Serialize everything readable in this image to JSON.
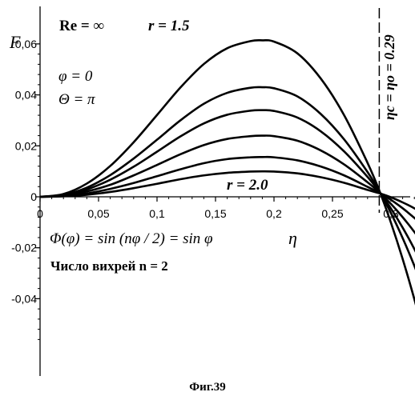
{
  "chart_data": {
    "type": "line",
    "title": "",
    "xlabel": "η",
    "ylabel": "F",
    "xlim": [
      0,
      0.33
    ],
    "ylim": [
      -0.058,
      0.062
    ],
    "grid": false,
    "x_ticks": [
      {
        "value": 0,
        "label": "0"
      },
      {
        "value": 0.05,
        "label": "0,05"
      },
      {
        "value": 0.1,
        "label": "0,1"
      },
      {
        "value": 0.15,
        "label": "0,15"
      },
      {
        "value": 0.2,
        "label": "0,2"
      },
      {
        "value": 0.25,
        "label": "0,25"
      },
      {
        "value": 0.3,
        "label": "0,3"
      }
    ],
    "y_ticks": [
      {
        "value": 0.06,
        "label": "0,06"
      },
      {
        "value": 0.04,
        "label": "0,04"
      },
      {
        "value": 0.02,
        "label": "0,02"
      },
      {
        "value": 0,
        "label": "0"
      },
      {
        "value": -0.02,
        "label": "-0,02"
      },
      {
        "value": -0.04,
        "label": "-0,04"
      }
    ],
    "vertical_line": {
      "x": 0.29,
      "label": "ηc = ηo = 0.29"
    },
    "series": [
      {
        "x": [
          0,
          0.02,
          0.04,
          0.06,
          0.08,
          0.1,
          0.12,
          0.14,
          0.16,
          0.18,
          0.19,
          0.2,
          0.22,
          0.24,
          0.26,
          0.28,
          0.29,
          0.3,
          0.31,
          0.32,
          0.33
        ],
        "values": [
          0,
          0.0011,
          0.0052,
          0.0121,
          0.0214,
          0.0321,
          0.0429,
          0.0521,
          0.0583,
          0.0611,
          0.0614,
          0.0609,
          0.0563,
          0.0464,
          0.032,
          0.0133,
          0.0025,
          -0.0102,
          -0.0244,
          -0.0402,
          -0.0575
        ]
      },
      {
        "x": [
          0,
          0.02,
          0.04,
          0.06,
          0.08,
          0.1,
          0.12,
          0.14,
          0.16,
          0.18,
          0.19,
          0.2,
          0.22,
          0.24,
          0.26,
          0.28,
          0.29,
          0.3,
          0.31,
          0.32,
          0.33
        ],
        "values": [
          0,
          0.0008,
          0.0036,
          0.0085,
          0.015,
          0.0224,
          0.03,
          0.0365,
          0.0408,
          0.0428,
          0.043,
          0.0426,
          0.0394,
          0.0325,
          0.0225,
          0.0097,
          0.0022,
          -0.0064,
          -0.0162,
          -0.0271,
          -0.0392
        ]
      },
      {
        "x": [
          0,
          0.02,
          0.04,
          0.06,
          0.08,
          0.1,
          0.12,
          0.14,
          0.16,
          0.18,
          0.19,
          0.2,
          0.22,
          0.24,
          0.26,
          0.28,
          0.29,
          0.3,
          0.31,
          0.32,
          0.33
        ],
        "values": [
          0,
          0.0006,
          0.0029,
          0.0067,
          0.0118,
          0.0177,
          0.0237,
          0.0288,
          0.0322,
          0.0338,
          0.034,
          0.0337,
          0.0311,
          0.0257,
          0.0178,
          0.0078,
          0.002,
          -0.0046,
          -0.0121,
          -0.0205,
          -0.0298
        ]
      },
      {
        "x": [
          0,
          0.02,
          0.04,
          0.06,
          0.08,
          0.1,
          0.12,
          0.14,
          0.16,
          0.18,
          0.19,
          0.2,
          0.22,
          0.24,
          0.26,
          0.28,
          0.29,
          0.3,
          0.31,
          0.32,
          0.33
        ],
        "values": [
          0,
          0.0004,
          0.0021,
          0.0047,
          0.0084,
          0.0125,
          0.0167,
          0.0203,
          0.0227,
          0.0238,
          0.024,
          0.0238,
          0.022,
          0.0182,
          0.0127,
          0.0057,
          0.0018,
          -0.0028,
          -0.008,
          -0.0138,
          -0.0202
        ]
      },
      {
        "x": [
          0,
          0.02,
          0.04,
          0.06,
          0.08,
          0.1,
          0.12,
          0.14,
          0.16,
          0.18,
          0.19,
          0.2,
          0.22,
          0.24,
          0.26,
          0.28,
          0.29,
          0.3,
          0.31,
          0.32,
          0.33
        ],
        "values": [
          0,
          0.0003,
          0.0013,
          0.0031,
          0.0054,
          0.0081,
          0.0108,
          0.0132,
          0.0148,
          0.0155,
          0.0156,
          0.0155,
          0.0143,
          0.0119,
          0.0084,
          0.0039,
          0.0016,
          -0.0012,
          -0.0045,
          -0.0083,
          -0.0125
        ]
      },
      {
        "x": [
          0,
          0.02,
          0.04,
          0.06,
          0.08,
          0.1,
          0.12,
          0.14,
          0.16,
          0.18,
          0.19,
          0.2,
          0.22,
          0.24,
          0.26,
          0.28,
          0.29,
          0.3,
          0.31,
          0.32,
          0.33
        ],
        "values": [
          0,
          0.0002,
          0.0008,
          0.0019,
          0.0034,
          0.0051,
          0.0069,
          0.0084,
          0.0094,
          0.0099,
          0.01,
          0.0099,
          0.0092,
          0.0077,
          0.0055,
          0.0027,
          0.0014,
          -0.0002,
          -0.0022,
          -0.0045,
          -0.0072
        ]
      }
    ],
    "annotations": {
      "re": "Re = ∞",
      "r_top": "r = 1.5",
      "r_bottom": "r = 2.0",
      "phi": "φ = 0",
      "theta": "Θ = π",
      "formula": "Φ(φ) = sin (nφ / 2) = sin φ",
      "vortex": "Число вихрей  n = 2"
    },
    "line_color": "#000000"
  },
  "caption": "Фиг.39"
}
